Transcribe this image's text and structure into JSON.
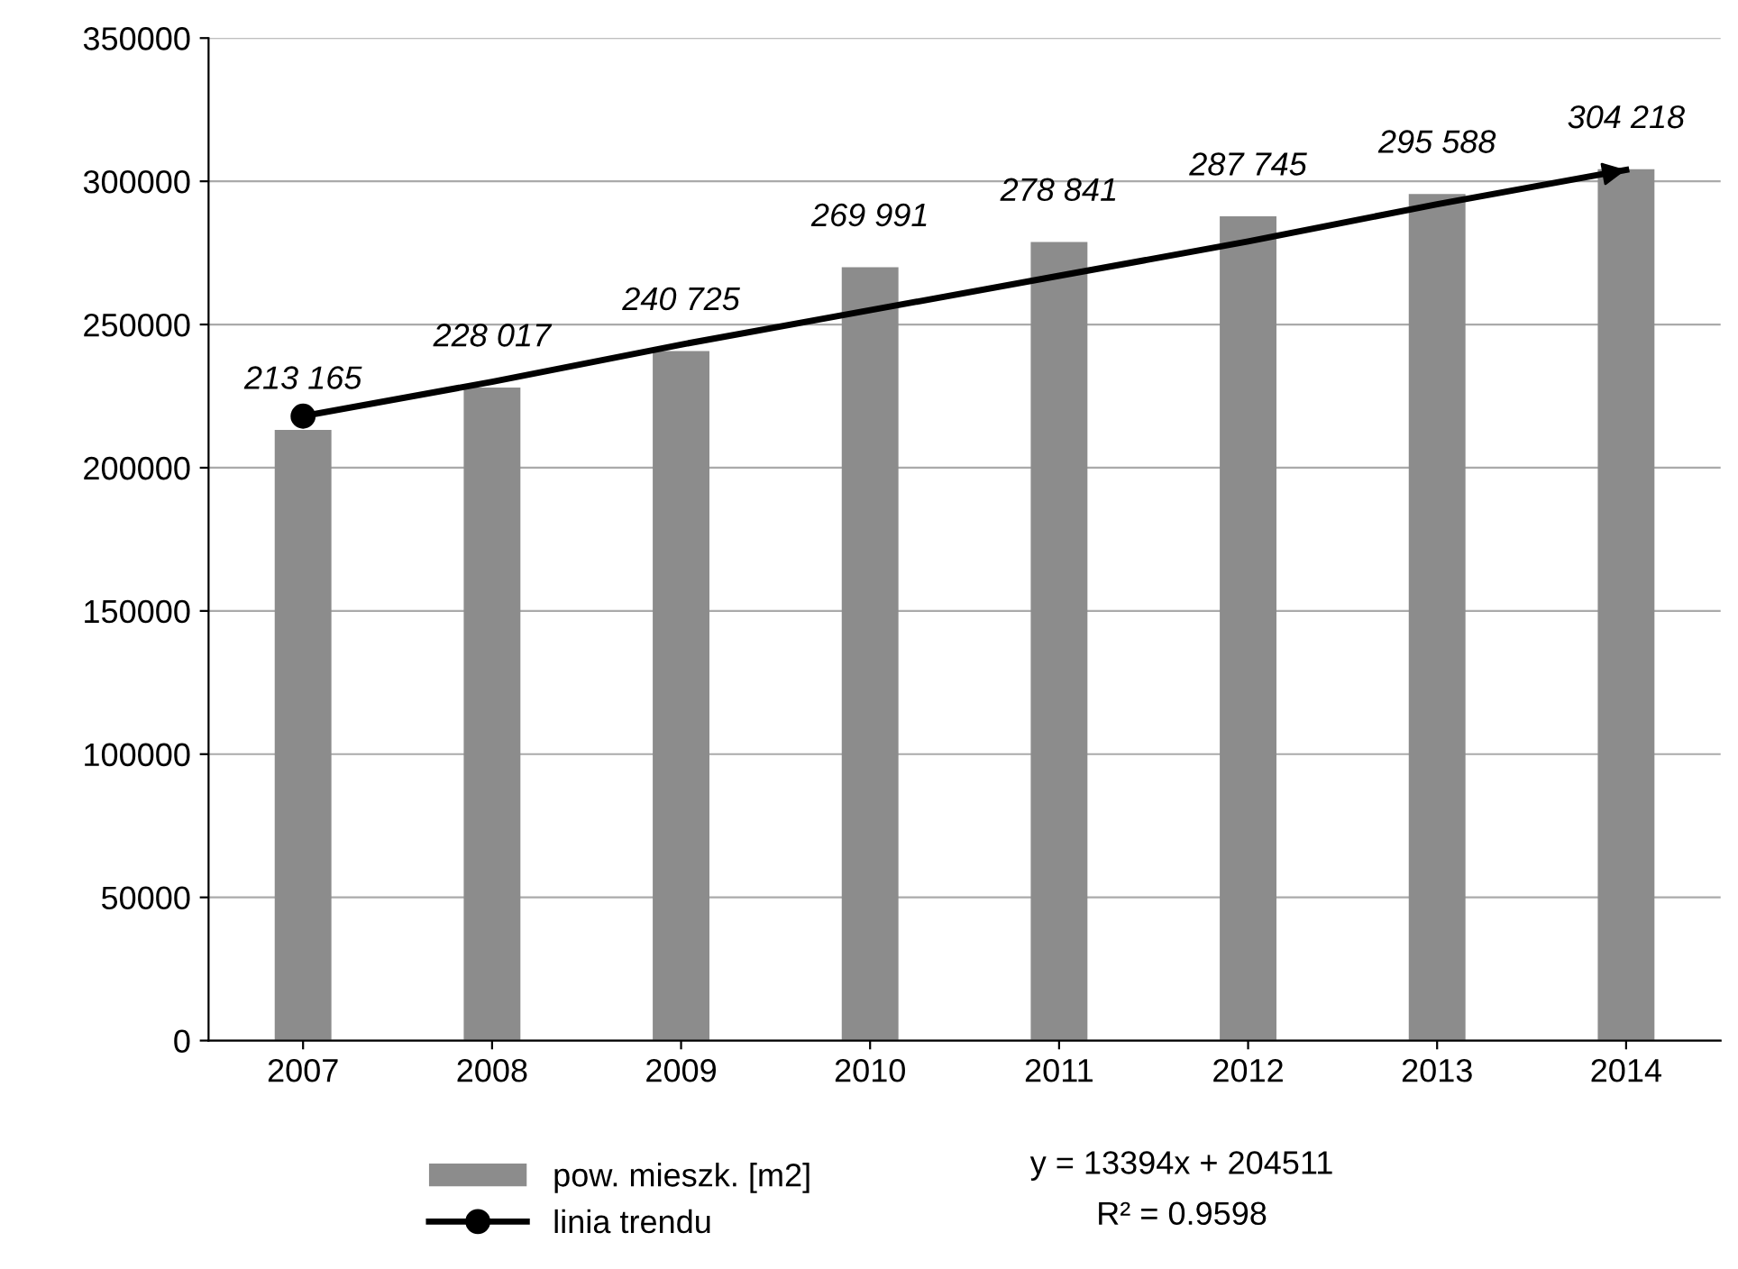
{
  "chart_data": {
    "type": "bar",
    "categories": [
      "2007",
      "2008",
      "2009",
      "2010",
      "2011",
      "2012",
      "2013",
      "2014"
    ],
    "series": [
      {
        "name": "pow. mieszk. [m2]",
        "color": "#8c8c8c",
        "values": [
          213165,
          228017,
          240725,
          269991,
          278841,
          287745,
          295588,
          304218
        ],
        "value_labels": [
          "213 165",
          "228 017",
          "240 725",
          "269 991",
          "278 841",
          "287 745",
          "295 588",
          "304 218"
        ]
      },
      {
        "name": "linia trendu",
        "type": "line",
        "color": "#000000",
        "values": [
          218000,
          230000,
          243000,
          255000,
          267000,
          279000,
          292000,
          304000
        ]
      }
    ],
    "ylim": [
      0,
      350000
    ],
    "yticks": [
      0,
      50000,
      100000,
      150000,
      200000,
      250000,
      300000,
      350000
    ],
    "grid": "y",
    "legend": "bottom",
    "annotations": [
      "y = 13394x + 204511",
      "R² = 0.9598"
    ]
  }
}
